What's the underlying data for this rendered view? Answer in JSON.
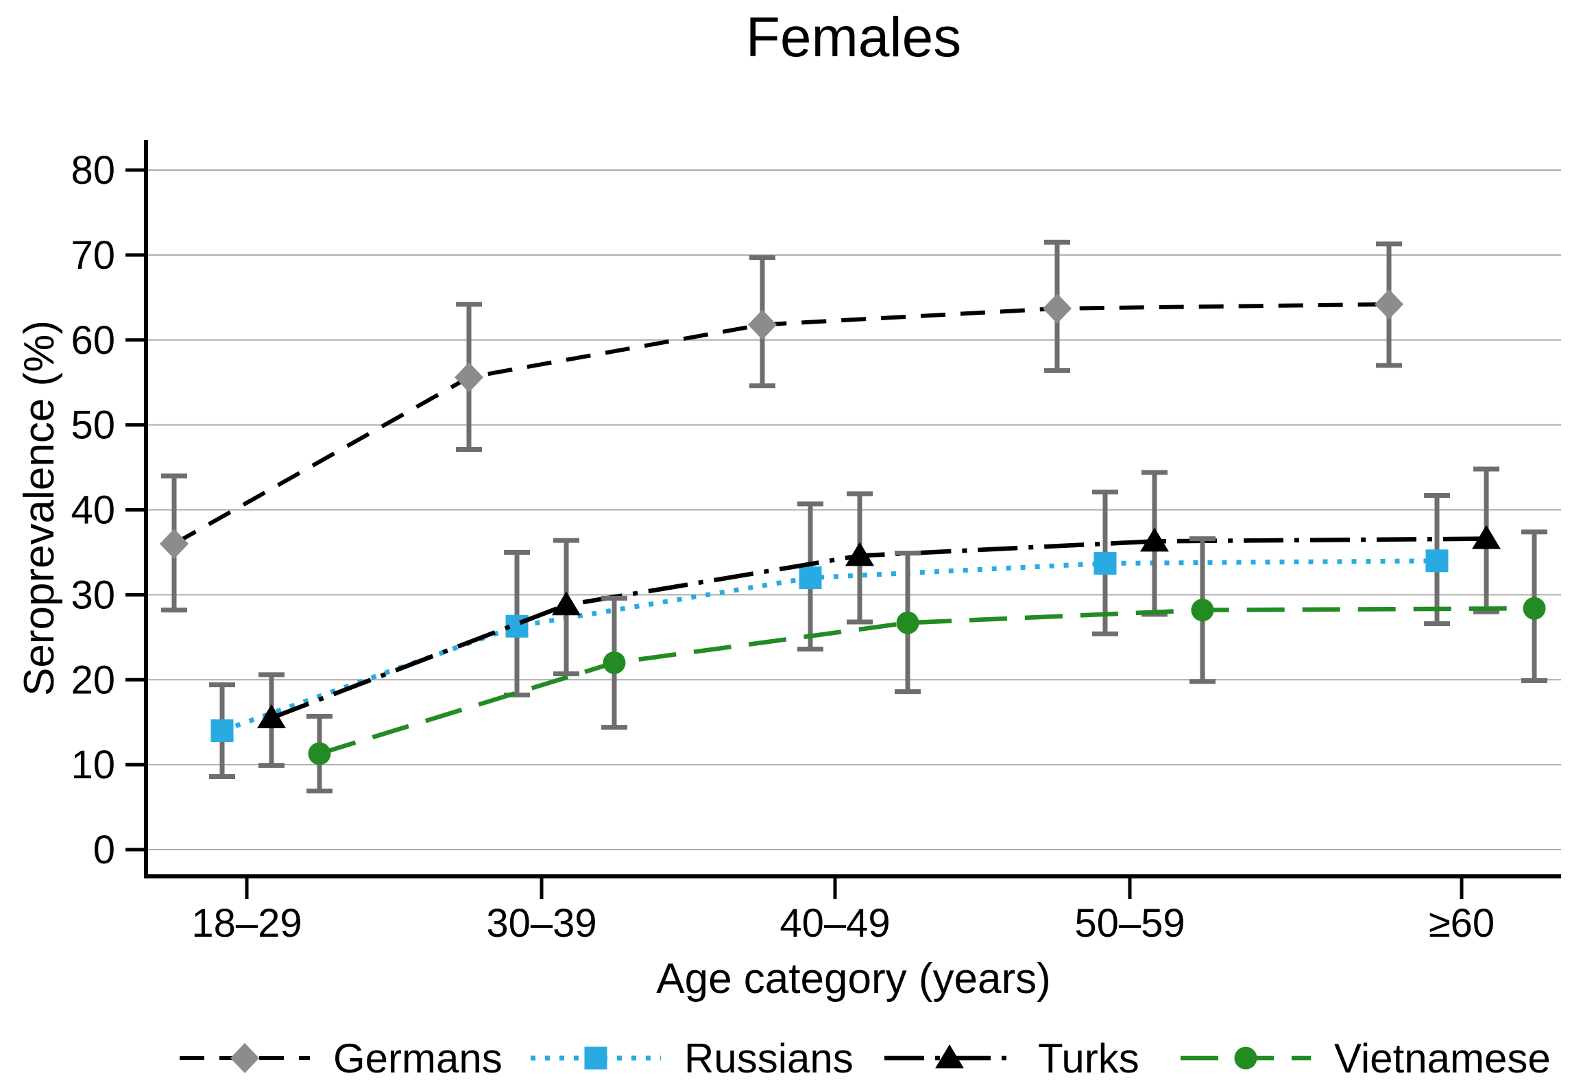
{
  "chart_data": {
    "type": "line",
    "title": "Females",
    "xlabel": "Age category (years)",
    "ylabel": "Seroprevalence (%)",
    "categories": [
      "18–29",
      "30–39",
      "40–49",
      "50–59",
      "≥60"
    ],
    "yticks": [
      0,
      10,
      20,
      30,
      40,
      50,
      60,
      70,
      80
    ],
    "ylim": [
      0,
      80
    ],
    "grid": true,
    "legend_position": "bottom",
    "error_bars": true,
    "error_bar_color": "#6e6e6e",
    "series": [
      {
        "name": "Germans",
        "marker": "diamond",
        "marker_color": "#8c8c8c",
        "line_color": "#000000",
        "line_style": "dash",
        "values": [
          36.0,
          55.6,
          61.8,
          63.7,
          64.2
        ],
        "ci_low": [
          28.2,
          47.1,
          54.6,
          56.4,
          57.0
        ],
        "ci_high": [
          44.0,
          64.2,
          69.7,
          71.5,
          71.3
        ]
      },
      {
        "name": "Russians",
        "marker": "square",
        "marker_color": "#29abe2",
        "line_color": "#29abe2",
        "line_style": "dot",
        "values": [
          14.0,
          26.3,
          32.0,
          33.7,
          34.0
        ],
        "ci_low": [
          8.6,
          18.2,
          23.6,
          25.4,
          26.6
        ],
        "ci_high": [
          19.4,
          35.0,
          40.7,
          42.1,
          41.7
        ]
      },
      {
        "name": "Turks",
        "marker": "triangle",
        "marker_color": "#000000",
        "line_color": "#000000",
        "line_style": "dash-dot",
        "values": [
          15.5,
          28.8,
          34.6,
          36.3,
          36.6
        ],
        "ci_low": [
          9.9,
          20.7,
          26.8,
          27.7,
          28.0
        ],
        "ci_high": [
          20.6,
          36.4,
          41.9,
          44.4,
          44.8
        ]
      },
      {
        "name": "Vietnamese",
        "marker": "circle",
        "marker_color": "#228b22",
        "line_color": "#228b22",
        "line_style": "long-dash",
        "values": [
          11.3,
          22.0,
          26.7,
          28.2,
          28.4
        ],
        "ci_low": [
          6.9,
          14.4,
          18.6,
          19.8,
          19.9
        ],
        "ci_high": [
          15.7,
          29.6,
          34.9,
          36.6,
          37.4
        ]
      }
    ]
  }
}
